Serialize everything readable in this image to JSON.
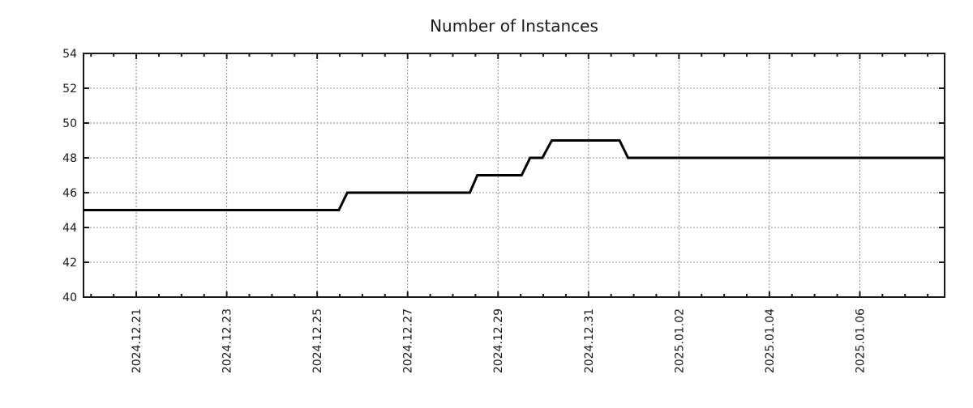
{
  "page": {
    "background": "#ffffff"
  },
  "chart_data": {
    "type": "line",
    "title": "Number of Instances",
    "xlabel": "",
    "ylabel": "",
    "legend": "none",
    "grid": true,
    "grid_color": "#8c8c8c",
    "axis_color": "#1a1a1a",
    "text_color": "#1a1a1a",
    "ylim": [
      40,
      54
    ],
    "yticks": [
      40,
      42,
      44,
      46,
      48,
      50,
      52,
      54
    ],
    "xlim": [
      "2024-12-19T20:00:00",
      "2025-01-07T21:00:00"
    ],
    "xticks": [
      {
        "date": "2024-12-21T00:00:00",
        "label": "2024.12.21"
      },
      {
        "date": "2024-12-23T00:00:00",
        "label": "2024.12.23"
      },
      {
        "date": "2024-12-25T00:00:00",
        "label": "2024.12.25"
      },
      {
        "date": "2024-12-27T00:00:00",
        "label": "2024.12.27"
      },
      {
        "date": "2024-12-29T00:00:00",
        "label": "2024.12.29"
      },
      {
        "date": "2024-12-31T00:00:00",
        "label": "2024.12.31"
      },
      {
        "date": "2025-01-02T00:00:00",
        "label": "2025.01.02"
      },
      {
        "date": "2025-01-04T00:00:00",
        "label": "2025.01.04"
      },
      {
        "date": "2025-01-06T00:00:00",
        "label": "2025.01.06"
      }
    ],
    "minor_tick_hours": 12,
    "series": [
      {
        "name": "instances",
        "color": "#000000",
        "line_width": 3,
        "points": [
          [
            "2024-12-19T20:00:00",
            45
          ],
          [
            "2024-12-25T11:30:00",
            45
          ],
          [
            "2024-12-25T16:00:00",
            46
          ],
          [
            "2024-12-28T09:00:00",
            46
          ],
          [
            "2024-12-28T13:00:00",
            47
          ],
          [
            "2024-12-29T12:30:00",
            47
          ],
          [
            "2024-12-29T17:00:00",
            48
          ],
          [
            "2024-12-29T23:30:00",
            48
          ],
          [
            "2024-12-30T04:30:00",
            49
          ],
          [
            "2024-12-31T16:30:00",
            49
          ],
          [
            "2024-12-31T21:00:00",
            48
          ],
          [
            "2025-01-07T21:00:00",
            48
          ]
        ]
      }
    ]
  }
}
